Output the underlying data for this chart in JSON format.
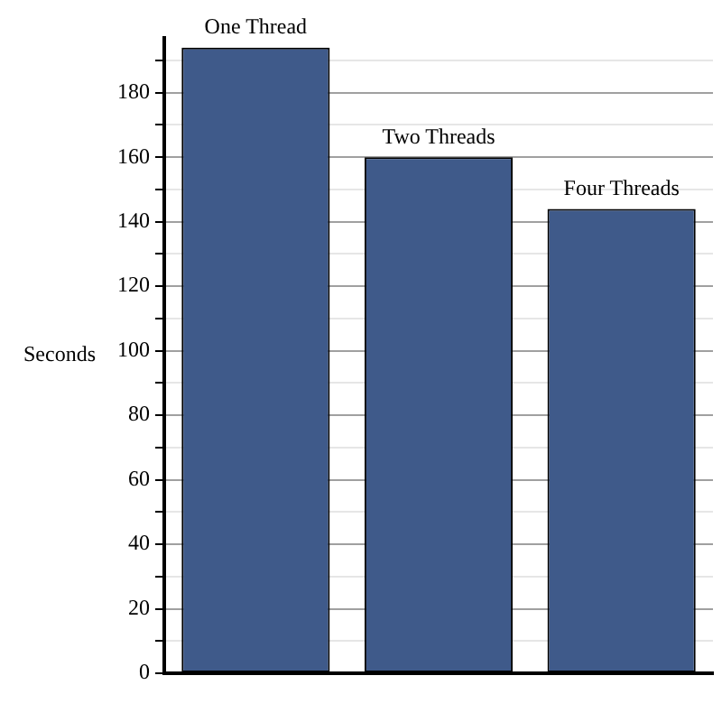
{
  "chart_data": {
    "type": "bar",
    "ylabel": "Seconds",
    "categories": [
      "One Thread",
      "Two Threads",
      "Four Threads"
    ],
    "values": [
      194,
      160,
      144
    ],
    "color": "#3f5a8a",
    "ylim": [
      0,
      197
    ],
    "yticks": [
      0,
      {
        "value": 10,
        "label": null
      },
      20,
      {
        "value": 30,
        "label": null
      },
      40,
      {
        "value": 50,
        "label": null
      },
      60,
      {
        "value": 70,
        "label": null
      },
      80,
      {
        "value": 90,
        "label": null
      },
      100,
      {
        "value": 110,
        "label": null
      },
      120,
      {
        "value": 130,
        "label": null
      },
      140,
      {
        "value": 150,
        "label": null
      },
      160,
      {
        "value": 170,
        "label": null
      },
      180,
      {
        "value": 190,
        "label": null
      }
    ],
    "grid": "y",
    "tick_labels": "y",
    "legend": false
  }
}
